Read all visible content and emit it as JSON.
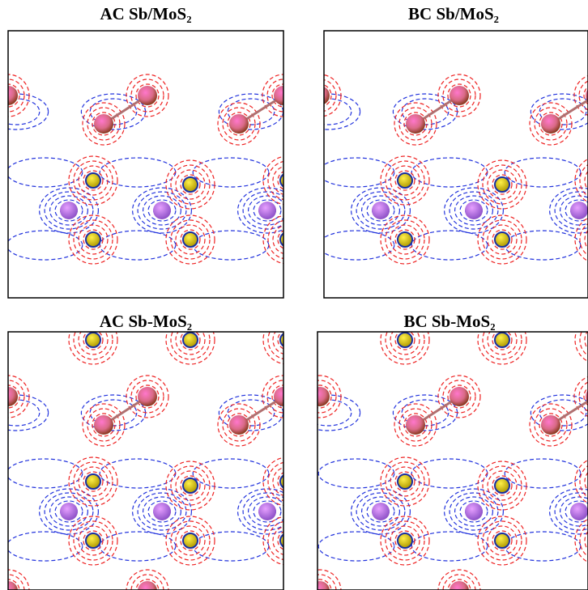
{
  "panels": [
    {
      "title": "AC Sb/MoS₂"
    },
    {
      "title": "BC Sb/MoS₂"
    },
    {
      "title": "AC Sb-MoS₂"
    },
    {
      "title": "BC Sb-MoS₂"
    }
  ]
}
